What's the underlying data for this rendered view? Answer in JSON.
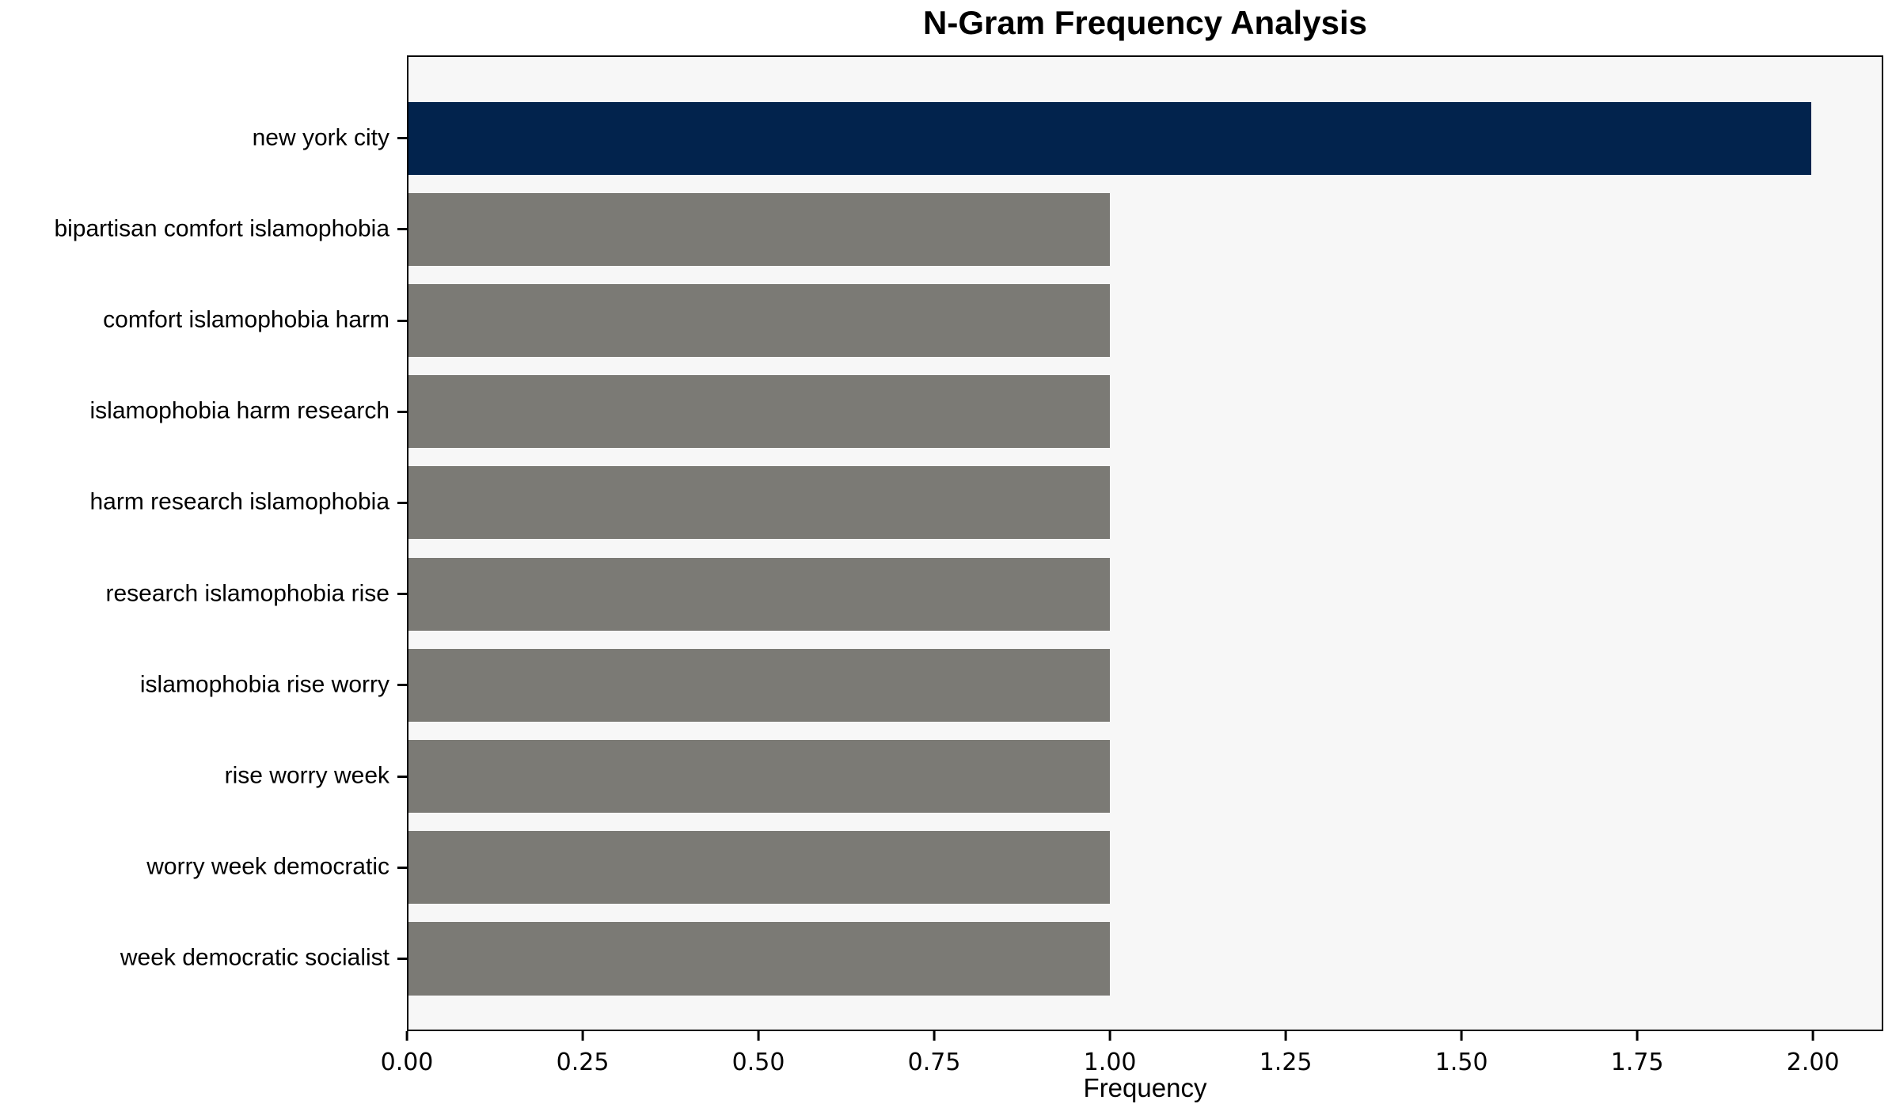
{
  "figure": {
    "title": "N-Gram Frequency Analysis",
    "xlabel": "Frequency"
  },
  "chart_data": {
    "type": "bar",
    "orientation": "horizontal",
    "title": "N-Gram Frequency Analysis",
    "xlabel": "Frequency",
    "ylabel": "",
    "categories": [
      "new york city",
      "bipartisan comfort islamophobia",
      "comfort islamophobia harm",
      "islamophobia harm research",
      "harm research islamophobia",
      "research islamophobia rise",
      "islamophobia rise worry",
      "rise worry week",
      "worry week democratic",
      "week democratic socialist"
    ],
    "values": [
      2,
      1,
      1,
      1,
      1,
      1,
      1,
      1,
      1,
      1
    ],
    "bar_colors": [
      "#02234D",
      "#7B7A75",
      "#7B7A75",
      "#7B7A75",
      "#7B7A75",
      "#7B7A75",
      "#7B7A75",
      "#7B7A75",
      "#7B7A75",
      "#7B7A75"
    ],
    "highlight_color": "#02234D",
    "default_color": "#7B7A75",
    "xlim": [
      0,
      2.1
    ],
    "x_ticks": [
      {
        "value": 0.0,
        "label": "0.00"
      },
      {
        "value": 0.25,
        "label": "0.25"
      },
      {
        "value": 0.5,
        "label": "0.50"
      },
      {
        "value": 0.75,
        "label": "0.75"
      },
      {
        "value": 1.0,
        "label": "1.00"
      },
      {
        "value": 1.25,
        "label": "1.25"
      },
      {
        "value": 1.5,
        "label": "1.50"
      },
      {
        "value": 1.75,
        "label": "1.75"
      },
      {
        "value": 2.0,
        "label": "2.00"
      }
    ],
    "grid": false,
    "legend": null,
    "plot_bg": "#F7F7F7",
    "figure_bg": "#FFFFFF",
    "spine_color": "#000000"
  }
}
